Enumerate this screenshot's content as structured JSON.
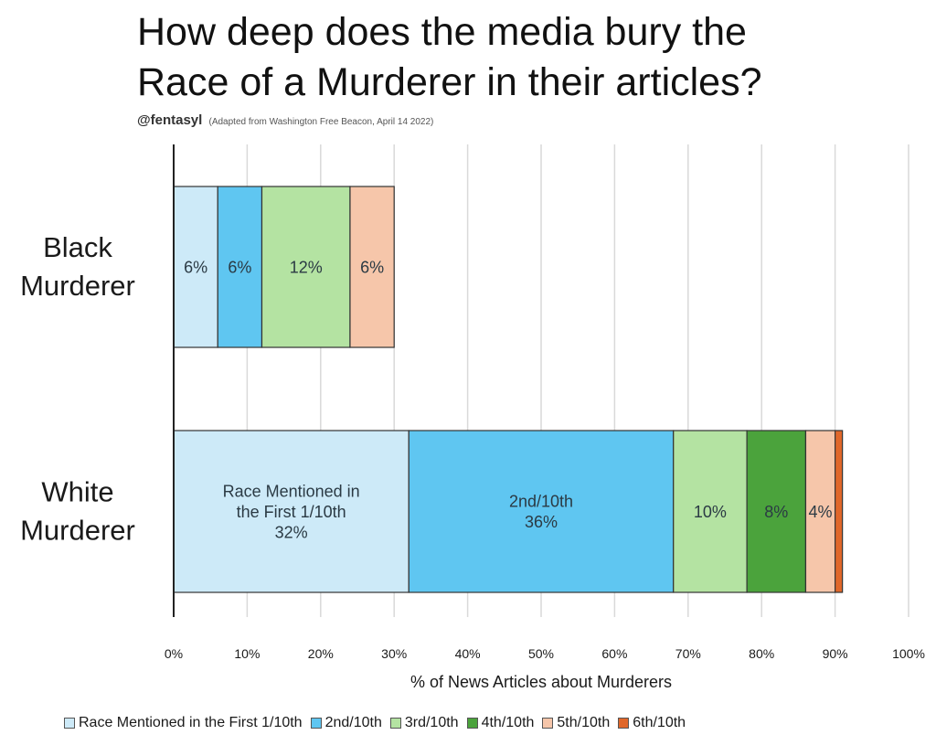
{
  "title_line1": "How deep does the media bury the",
  "title_line2": "Race of a Murderer in their articles?",
  "byline": "@fentasyl",
  "source_note": "(Adapted from Washington Free Beacon, April 14 2022)",
  "chart_data": {
    "type": "bar",
    "orientation": "horizontal",
    "stacked": true,
    "xlabel": "% of News Articles about Murderers",
    "xlim": [
      0,
      100
    ],
    "x_ticks": [
      "0%",
      "10%",
      "20%",
      "30%",
      "40%",
      "50%",
      "60%",
      "70%",
      "80%",
      "90%",
      "100%"
    ],
    "grid": true,
    "legend_position": "bottom",
    "categories": [
      "Black\nMurderer",
      "White\nMurderer"
    ],
    "series": [
      {
        "name": "Race Mentioned in the First 1/10th",
        "color": "#cdeaf8",
        "values": [
          6,
          32
        ],
        "labels": [
          [
            "6%"
          ],
          [
            "Race Mentioned in",
            "the First 1/10th",
            "32%"
          ]
        ]
      },
      {
        "name": "2nd/10th",
        "color": "#5fc6f1",
        "values": [
          6,
          36
        ],
        "labels": [
          [
            "6%"
          ],
          [
            "2nd/10th",
            "36%"
          ]
        ]
      },
      {
        "name": "3rd/10th",
        "color": "#b4e3a2",
        "values": [
          12,
          10
        ],
        "labels": [
          [
            "12%"
          ],
          [
            "10%"
          ]
        ]
      },
      {
        "name": "4th/10th",
        "color": "#4ba33c",
        "values": [
          0,
          8
        ],
        "labels": [
          [],
          [
            "8%"
          ]
        ]
      },
      {
        "name": "5th/10th",
        "color": "#f6c6aa",
        "values": [
          6,
          4
        ],
        "labels": [
          [
            "6%"
          ],
          [
            "4%"
          ]
        ]
      },
      {
        "name": "6th/10th",
        "color": "#e0672a",
        "values": [
          0,
          1
        ],
        "labels": [
          [],
          []
        ]
      }
    ]
  }
}
